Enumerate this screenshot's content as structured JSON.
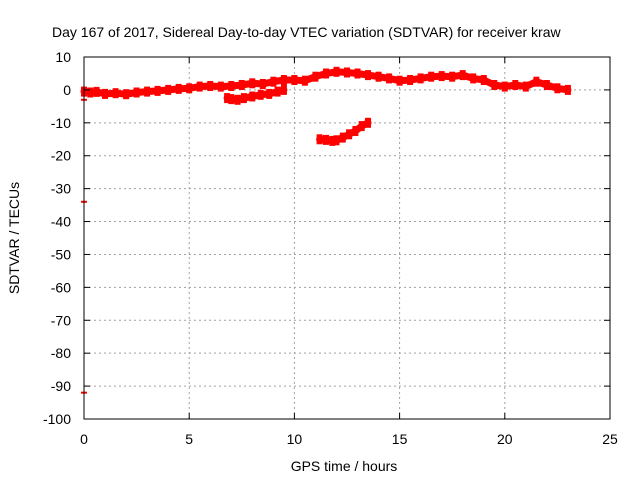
{
  "chart_data": {
    "type": "scatter",
    "title": "Day 167 of 2017, Sidereal Day-to-day VTEC variation (SDTVAR) for receiver kraw",
    "xlabel": "GPS time / hours",
    "ylabel": "SDTVAR / TECUs",
    "xlim": [
      0,
      25
    ],
    "ylim": [
      -100,
      10
    ],
    "xticks": [
      0,
      5,
      10,
      15,
      20,
      25
    ],
    "yticks": [
      10,
      0,
      -10,
      -20,
      -30,
      -40,
      -50,
      -60,
      -70,
      -80,
      -90,
      -100
    ],
    "grid": true,
    "color": "#ff0000",
    "series": [
      {
        "name": "main",
        "x": [
          0.0,
          0.3,
          0.6,
          1.0,
          1.5,
          2.0,
          2.5,
          3.0,
          3.5,
          4.0,
          4.5,
          5.0,
          5.5,
          6.0,
          6.5,
          7.0,
          7.5,
          8.0,
          8.5,
          9.0,
          9.5,
          10.0,
          10.5,
          11.0,
          11.5,
          12.0,
          12.5,
          13.0,
          13.5,
          14.0,
          14.5,
          15.0,
          15.5,
          16.0,
          16.5,
          17.0,
          17.5,
          18.0,
          18.5,
          19.0,
          19.5,
          20.0,
          20.5,
          21.0,
          21.5,
          22.0,
          22.5,
          23.0
        ],
        "y": [
          -0.5,
          -0.8,
          -0.6,
          -1.2,
          -1.0,
          -1.3,
          -0.8,
          -0.5,
          -0.3,
          0.0,
          0.3,
          0.5,
          1.0,
          1.2,
          1.0,
          1.2,
          1.5,
          2.0,
          1.8,
          2.5,
          3.0,
          3.0,
          2.8,
          4.0,
          5.0,
          5.5,
          5.3,
          5.0,
          4.5,
          4.0,
          3.5,
          2.8,
          3.0,
          3.5,
          4.0,
          4.2,
          4.0,
          4.5,
          3.5,
          3.0,
          1.5,
          1.0,
          1.5,
          1.0,
          2.5,
          1.5,
          0.5,
          0.0
        ]
      },
      {
        "name": "segment-2",
        "x": [
          6.8,
          7.0,
          7.3,
          7.6,
          8.0,
          8.4,
          8.8,
          9.2,
          9.5
        ],
        "y": [
          -2.5,
          -2.8,
          -3.0,
          -2.5,
          -2.0,
          -1.5,
          -1.2,
          -0.5,
          0.0
        ]
      },
      {
        "name": "segment-3",
        "x": [
          11.2,
          11.5,
          11.8,
          12.0,
          12.3,
          12.6,
          12.9,
          13.2,
          13.5
        ],
        "y": [
          -15.0,
          -15.2,
          -15.5,
          -15.3,
          -14.5,
          -13.5,
          -12.5,
          -11.0,
          -10.0
        ]
      }
    ],
    "markers": [
      {
        "x": 0.0,
        "y": -3.0
      },
      {
        "x": 0.0,
        "y": -34.0
      },
      {
        "x": 0.0,
        "y": -92.0
      }
    ]
  }
}
